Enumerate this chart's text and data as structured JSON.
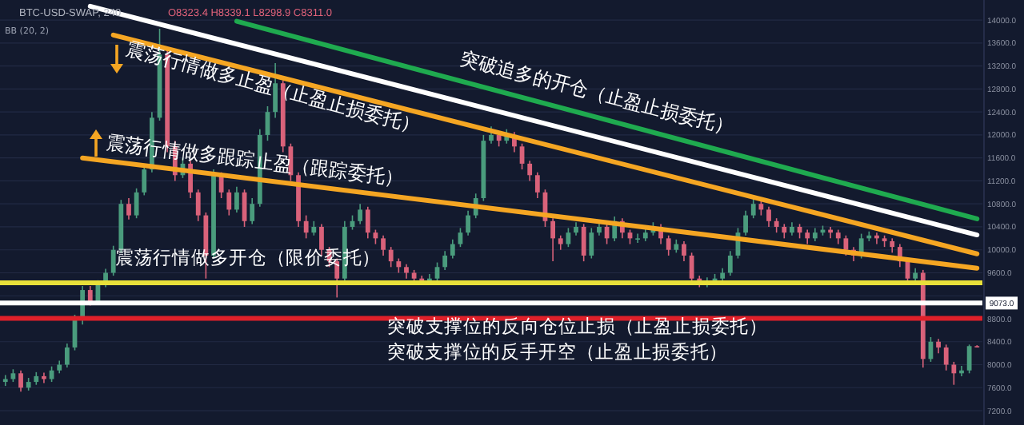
{
  "chart_data": {
    "type": "candlestick",
    "title": "BTC-USD-SWAP, 240",
    "subtitle": "O8323.4 H8339.1 L8298.9 C8311.0",
    "categories": [
      null,
      null,
      null,
      null,
      null,
      null,
      null,
      null,
      null,
      null,
      null,
      null,
      null,
      null,
      null,
      null,
      null,
      null,
      null,
      null,
      null,
      null,
      null,
      null,
      null,
      null,
      null,
      null,
      null,
      null,
      null,
      null,
      null,
      null,
      null,
      null,
      null,
      null,
      null,
      null,
      null,
      null,
      null,
      null,
      null,
      null,
      null,
      null,
      null,
      null,
      null,
      null,
      null,
      null,
      null,
      null,
      null,
      null,
      null,
      null,
      null,
      null,
      null,
      null,
      null,
      null,
      null,
      null,
      null,
      null,
      null,
      null,
      null,
      null,
      null,
      null,
      null,
      null,
      null,
      null,
      null,
      null,
      null,
      null,
      null,
      null,
      null,
      null,
      null,
      null,
      null,
      null,
      null,
      null,
      null,
      null,
      null,
      null,
      null,
      null,
      null,
      null,
      null,
      null,
      null,
      null,
      null,
      null,
      null,
      null,
      null,
      null,
      null,
      null,
      null,
      null,
      null,
      null,
      null,
      null,
      null,
      null,
      null,
      null,
      null,
      null,
      null
    ],
    "ohlc": [
      [
        7700,
        7820,
        7630,
        7750
      ],
      [
        7750,
        7920,
        7700,
        7850
      ],
      [
        7850,
        7900,
        7530,
        7600
      ],
      [
        7600,
        7770,
        7550,
        7700
      ],
      [
        7700,
        7870,
        7650,
        7800
      ],
      [
        7800,
        7860,
        7680,
        7750
      ],
      [
        7750,
        7970,
        7700,
        7900
      ],
      [
        7900,
        8070,
        7850,
        8000
      ],
      [
        8000,
        8370,
        7950,
        8300
      ],
      [
        8300,
        8870,
        8250,
        8800
      ],
      [
        8800,
        9370,
        8700,
        9300
      ],
      [
        9300,
        9370,
        9030,
        9100
      ],
      [
        9100,
        9470,
        9050,
        9400
      ],
      [
        9400,
        9670,
        9350,
        9600
      ],
      [
        9600,
        10070,
        9550,
        10000
      ],
      [
        10000,
        10870,
        9950,
        10800
      ],
      [
        10800,
        10900,
        10530,
        10600
      ],
      [
        10600,
        11070,
        10550,
        11000
      ],
      [
        11000,
        11470,
        10950,
        11400
      ],
      [
        11400,
        12400,
        11350,
        12300
      ],
      [
        12300,
        13850,
        12250,
        13400
      ],
      [
        13400,
        13500,
        11700,
        11800
      ],
      [
        11800,
        11900,
        11200,
        11300
      ],
      [
        11300,
        11600,
        11250,
        11500
      ],
      [
        11500,
        11550,
        10900,
        11000
      ],
      [
        11000,
        11050,
        10500,
        10600
      ],
      [
        10600,
        10650,
        9500,
        9900
      ],
      [
        9900,
        11400,
        9850,
        11300
      ],
      [
        11300,
        11350,
        10900,
        11000
      ],
      [
        11000,
        11050,
        10600,
        10700
      ],
      [
        10700,
        11100,
        10650,
        11000
      ],
      [
        11000,
        11050,
        10400,
        10500
      ],
      [
        10500,
        10900,
        10450,
        10800
      ],
      [
        10800,
        12100,
        10750,
        12000
      ],
      [
        12000,
        12500,
        11900,
        12400
      ],
      [
        12400,
        13250,
        12300,
        12900
      ],
      [
        12900,
        12950,
        11700,
        11800
      ],
      [
        11800,
        11850,
        11200,
        11300
      ],
      [
        11300,
        11350,
        10400,
        10500
      ],
      [
        10500,
        10600,
        10200,
        10300
      ],
      [
        10300,
        10500,
        10250,
        10400
      ],
      [
        10400,
        10450,
        9900,
        10000
      ],
      [
        10000,
        10050,
        9700,
        9800
      ],
      [
        9800,
        9850,
        9170,
        9500
      ],
      [
        9500,
        10500,
        9450,
        10400
      ],
      [
        10400,
        10600,
        10350,
        10500
      ],
      [
        10500,
        10800,
        10450,
        10700
      ],
      [
        10700,
        10750,
        10200,
        10300
      ],
      [
        10300,
        10350,
        10100,
        10200
      ],
      [
        10200,
        10250,
        9900,
        10000
      ],
      [
        10000,
        10050,
        9700,
        9800
      ],
      [
        9800,
        9850,
        9600,
        9700
      ],
      [
        9700,
        9750,
        9500,
        9600
      ],
      [
        9600,
        9650,
        9420,
        9500
      ],
      [
        9500,
        9550,
        9400,
        9450
      ],
      [
        9450,
        9580,
        9400,
        9500
      ],
      [
        9500,
        9780,
        9450,
        9700
      ],
      [
        9700,
        9980,
        9650,
        9900
      ],
      [
        9900,
        10180,
        9850,
        10100
      ],
      [
        10100,
        10380,
        10050,
        10300
      ],
      [
        10300,
        10680,
        10250,
        10600
      ],
      [
        10600,
        10980,
        10550,
        10900
      ],
      [
        10900,
        12000,
        10850,
        11900
      ],
      [
        11900,
        12150,
        11850,
        12000
      ],
      [
        12000,
        12050,
        11800,
        11900
      ],
      [
        11900,
        12100,
        11850,
        12000
      ],
      [
        12000,
        12050,
        11700,
        11800
      ],
      [
        11800,
        11850,
        11400,
        11500
      ],
      [
        11500,
        11550,
        11200,
        11300
      ],
      [
        11300,
        11350,
        10900,
        11000
      ],
      [
        11000,
        11050,
        10400,
        10500
      ],
      [
        10500,
        10550,
        9800,
        10200
      ],
      [
        10200,
        10250,
        10000,
        10100
      ],
      [
        10100,
        10380,
        10050,
        10300
      ],
      [
        10300,
        10480,
        10250,
        10400
      ],
      [
        10400,
        10450,
        9800,
        9900
      ],
      [
        9900,
        10380,
        9850,
        10300
      ],
      [
        10300,
        10480,
        10250,
        10400
      ],
      [
        10400,
        10450,
        10100,
        10200
      ],
      [
        10200,
        10580,
        10150,
        10500
      ],
      [
        10500,
        10550,
        10200,
        10300
      ],
      [
        10300,
        10350,
        10100,
        10200
      ],
      [
        10200,
        10280,
        10120,
        10200
      ],
      [
        10200,
        10380,
        10150,
        10300
      ],
      [
        10300,
        10480,
        10250,
        10400
      ],
      [
        10400,
        10450,
        10100,
        10200
      ],
      [
        10200,
        10250,
        9900,
        10000
      ],
      [
        10000,
        10180,
        9950,
        10100
      ],
      [
        10100,
        10150,
        9800,
        9900
      ],
      [
        9900,
        9950,
        9400,
        9500
      ],
      [
        9500,
        9550,
        9350,
        9400
      ],
      [
        9400,
        9520,
        9350,
        9450
      ],
      [
        9450,
        9580,
        9400,
        9500
      ],
      [
        9500,
        9680,
        9450,
        9600
      ],
      [
        9600,
        9980,
        9550,
        9900
      ],
      [
        9900,
        10380,
        9850,
        10300
      ],
      [
        10300,
        10680,
        10250,
        10600
      ],
      [
        10600,
        10950,
        10550,
        10800
      ],
      [
        10800,
        10850,
        10600,
        10700
      ],
      [
        10700,
        10750,
        10400,
        10500
      ],
      [
        10500,
        10550,
        10300,
        10400
      ],
      [
        10400,
        10450,
        10200,
        10300
      ],
      [
        10300,
        10480,
        10250,
        10400
      ],
      [
        10400,
        10450,
        10200,
        10300
      ],
      [
        10300,
        10350,
        10100,
        10200
      ],
      [
        10200,
        10380,
        10150,
        10300
      ],
      [
        10300,
        10420,
        10250,
        10350
      ],
      [
        10350,
        10400,
        10200,
        10300
      ],
      [
        10300,
        10350,
        10100,
        10200
      ],
      [
        10200,
        10250,
        9900,
        10000
      ],
      [
        10000,
        10050,
        9800,
        9900
      ],
      [
        9900,
        10280,
        9850,
        10200
      ],
      [
        10200,
        10320,
        10150,
        10250
      ],
      [
        10250,
        10300,
        10100,
        10200
      ],
      [
        10200,
        10250,
        10050,
        10150
      ],
      [
        10150,
        10200,
        9950,
        10050
      ],
      [
        10050,
        10100,
        9700,
        9800
      ],
      [
        9800,
        9850,
        9400,
        9500
      ],
      [
        9500,
        9680,
        9450,
        9600
      ],
      [
        9600,
        9650,
        7950,
        8100
      ],
      [
        8100,
        8480,
        8050,
        8400
      ],
      [
        8400,
        8450,
        8200,
        8300
      ],
      [
        8300,
        8350,
        7900,
        8000
      ],
      [
        8000,
        8050,
        7650,
        7850
      ],
      [
        7850,
        7980,
        7800,
        7900
      ],
      [
        7900,
        8350,
        7850,
        8323.4
      ],
      [
        8323.4,
        8339.1,
        8298.9,
        8311.0
      ]
    ],
    "colors": [
      "#4a9c7d",
      "#4a9c7d",
      "#d9627a",
      "#4a9c7d",
      "#4a9c7d",
      "#d9627a",
      "#4a9c7d",
      "#4a9c7d",
      "#4a9c7d",
      "#4a9c7d",
      "#4a9c7d",
      "#d9627a",
      "#4a9c7d",
      "#4a9c7d",
      "#4a9c7d",
      "#4a9c7d",
      "#d9627a",
      "#4a9c7d",
      "#4a9c7d",
      "#4a9c7d",
      "#4a9c7d",
      "#d9627a",
      "#d9627a",
      "#4a9c7d",
      "#d9627a",
      "#d9627a",
      "#d9627a",
      "#4a9c7d",
      "#d9627a",
      "#d9627a",
      "#4a9c7d",
      "#d9627a",
      "#4a9c7d",
      "#4a9c7d",
      "#4a9c7d",
      "#4a9c7d",
      "#d9627a",
      "#d9627a",
      "#d9627a",
      "#d9627a",
      "#4a9c7d",
      "#d9627a",
      "#d9627a",
      "#d9627a",
      "#4a9c7d",
      "#4a9c7d",
      "#4a9c7d",
      "#d9627a",
      "#d9627a",
      "#d9627a",
      "#d9627a",
      "#d9627a",
      "#d9627a",
      "#d9627a",
      "#d9627a",
      "#4a9c7d",
      "#4a9c7d",
      "#4a9c7d",
      "#4a9c7d",
      "#4a9c7d",
      "#4a9c7d",
      "#4a9c7d",
      "#4a9c7d",
      "#4a9c7d",
      "#d9627a",
      "#4a9c7d",
      "#d9627a",
      "#d9627a",
      "#d9627a",
      "#d9627a",
      "#d9627a",
      "#d9627a",
      "#d9627a",
      "#4a9c7d",
      "#4a9c7d",
      "#d9627a",
      "#4a9c7d",
      "#4a9c7d",
      "#d9627a",
      "#4a9c7d",
      "#d9627a",
      "#d9627a",
      "#4a9c7d",
      "#4a9c7d",
      "#4a9c7d",
      "#d9627a",
      "#d9627a",
      "#4a9c7d",
      "#d9627a",
      "#d9627a",
      "#d9627a",
      "#4a9c7d",
      "#4a9c7d",
      "#4a9c7d",
      "#4a9c7d",
      "#4a9c7d",
      "#4a9c7d",
      "#4a9c7d",
      "#d9627a",
      "#d9627a",
      "#d9627a",
      "#d9627a",
      "#4a9c7d",
      "#d9627a",
      "#d9627a",
      "#4a9c7d",
      "#4a9c7d",
      "#d9627a",
      "#d9627a",
      "#d9627a",
      "#d9627a",
      "#4a9c7d",
      "#4a9c7d",
      "#d9627a",
      "#d9627a",
      "#d9627a",
      "#d9627a",
      "#d9627a",
      "#4a9c7d",
      "#d9627a",
      "#4a9c7d",
      "#d9627a",
      "#d9627a",
      "#d9627a",
      "#4a9c7d",
      "#4a9c7d",
      "#d9627a"
    ],
    "series": [
      {
        "type": "line",
        "color": "#1faa4f",
        "values": [
          null,
          null,
          null,
          null,
          null,
          null,
          null,
          null,
          null,
          null,
          null,
          null,
          null,
          null,
          null,
          null,
          null,
          null,
          null,
          null,
          null,
          null,
          null,
          null,
          null,
          null,
          null,
          null,
          null,
          null,
          13980,
          null,
          null,
          null,
          null,
          null,
          null,
          null,
          null,
          null,
          null,
          null,
          null,
          null,
          null,
          null,
          null,
          null,
          null,
          null,
          null,
          null,
          null,
          null,
          null,
          null,
          null,
          null,
          null,
          null,
          null,
          null,
          null,
          null,
          null,
          null,
          null,
          null,
          null,
          null,
          null,
          null,
          null,
          null,
          null,
          null,
          null,
          null,
          null,
          null,
          null,
          null,
          null,
          null,
          null,
          null,
          null,
          null,
          null,
          null,
          null,
          null,
          null,
          null,
          null,
          null,
          null,
          null,
          null,
          null,
          null,
          null,
          null,
          null,
          null,
          null,
          null,
          null,
          null,
          null,
          null,
          null,
          null,
          null,
          null,
          null,
          null,
          null,
          null,
          null,
          null,
          null,
          null,
          null,
          null,
          null,
          10540
        ]
      },
      {
        "type": "line",
        "color": "#ffffff",
        "values": [
          null,
          null,
          null,
          null,
          null,
          null,
          null,
          null,
          null,
          null,
          null,
          14240,
          null,
          null,
          null,
          null,
          null,
          null,
          null,
          null,
          null,
          null,
          null,
          null,
          null,
          null,
          null,
          null,
          null,
          null,
          null,
          null,
          null,
          null,
          null,
          null,
          null,
          null,
          null,
          null,
          null,
          null,
          null,
          null,
          null,
          null,
          null,
          null,
          null,
          null,
          null,
          null,
          null,
          null,
          null,
          null,
          null,
          null,
          null,
          null,
          null,
          null,
          null,
          null,
          null,
          null,
          null,
          null,
          null,
          null,
          null,
          null,
          null,
          null,
          null,
          null,
          null,
          null,
          null,
          null,
          null,
          null,
          null,
          null,
          null,
          null,
          null,
          null,
          null,
          null,
          null,
          null,
          null,
          null,
          null,
          null,
          null,
          null,
          null,
          null,
          null,
          null,
          null,
          null,
          null,
          null,
          null,
          null,
          null,
          null,
          null,
          null,
          null,
          null,
          null,
          null,
          null,
          null,
          null,
          null,
          null,
          null,
          null,
          null,
          null,
          null,
          10260
        ]
      },
      {
        "type": "line",
        "color": "#f5a623",
        "values": [
          null,
          null,
          null,
          null,
          null,
          null,
          null,
          null,
          null,
          null,
          null,
          null,
          null,
          null,
          13740,
          null,
          null,
          null,
          null,
          null,
          null,
          null,
          null,
          null,
          null,
          null,
          null,
          null,
          null,
          null,
          null,
          null,
          null,
          null,
          null,
          null,
          null,
          null,
          null,
          null,
          null,
          null,
          null,
          null,
          null,
          null,
          null,
          null,
          null,
          null,
          null,
          null,
          null,
          null,
          null,
          null,
          null,
          null,
          null,
          null,
          null,
          null,
          null,
          null,
          null,
          null,
          null,
          null,
          null,
          null,
          null,
          null,
          null,
          null,
          null,
          null,
          null,
          null,
          null,
          null,
          null,
          null,
          null,
          null,
          null,
          null,
          null,
          null,
          null,
          null,
          null,
          null,
          null,
          null,
          null,
          null,
          null,
          null,
          null,
          null,
          null,
          null,
          null,
          null,
          null,
          null,
          null,
          null,
          null,
          null,
          null,
          null,
          null,
          null,
          null,
          null,
          null,
          null,
          null,
          null,
          null,
          null,
          null,
          null,
          null,
          null,
          9930
        ]
      },
      {
        "type": "line",
        "color": "#f5a623",
        "values": [
          null,
          null,
          null,
          null,
          null,
          null,
          null,
          null,
          null,
          null,
          11600,
          null,
          null,
          null,
          null,
          null,
          null,
          null,
          null,
          null,
          null,
          null,
          null,
          null,
          null,
          null,
          null,
          null,
          null,
          null,
          null,
          null,
          null,
          null,
          null,
          null,
          null,
          null,
          null,
          null,
          null,
          null,
          null,
          null,
          null,
          null,
          null,
          null,
          null,
          null,
          null,
          null,
          null,
          null,
          null,
          null,
          null,
          null,
          null,
          null,
          null,
          null,
          null,
          null,
          null,
          null,
          null,
          null,
          null,
          null,
          null,
          null,
          null,
          null,
          null,
          null,
          null,
          null,
          null,
          null,
          null,
          null,
          null,
          null,
          null,
          null,
          null,
          null,
          null,
          null,
          null,
          null,
          null,
          null,
          null,
          null,
          null,
          null,
          null,
          null,
          null,
          null,
          null,
          null,
          null,
          null,
          null,
          null,
          null,
          null,
          null,
          null,
          null,
          null,
          null,
          null,
          null,
          null,
          null,
          null,
          null,
          null,
          null,
          null,
          null,
          null,
          9680
        ]
      }
    ],
    "ylim": [
      6950,
      14350
    ],
    "yticks": [
      {
        "value": 7200,
        "label": "7200.0"
      },
      {
        "value": 7600,
        "label": "7600.0"
      },
      {
        "value": 8000,
        "label": "8000.0"
      },
      {
        "value": 8400,
        "label": "8400.0"
      },
      {
        "value": 8800,
        "label": "8800.0"
      },
      {
        "value": 9200,
        "label": null
      },
      {
        "value": 9600,
        "label": "9600.0"
      },
      {
        "value": 10000,
        "label": "10000.0"
      },
      {
        "value": 10400,
        "label": "10400.0"
      },
      {
        "value": 10800,
        "label": "10800.0"
      },
      {
        "value": 11200,
        "label": "11200.0"
      },
      {
        "value": 11600,
        "label": "11600.0"
      },
      {
        "value": 12000,
        "label": "12000.0"
      },
      {
        "value": 12400,
        "label": "12400.0"
      },
      {
        "value": 12800,
        "label": "12800.0"
      },
      {
        "value": 13200,
        "label": "13200.0"
      },
      {
        "value": 13600,
        "label": "13600.0"
      },
      {
        "value": 14000,
        "label": "14000.0"
      }
    ],
    "tick_labels": "y",
    "grid": "y",
    "ref_lines": [
      {
        "axis": "y",
        "value": 9426,
        "color": "#e8e03a"
      },
      {
        "axis": "y",
        "value": 9073,
        "label": "9073.0",
        "color": "#ffffff"
      },
      {
        "axis": "y",
        "value": 8806,
        "color": "#e0202a"
      }
    ],
    "annotations": [
      "BB (20, 2)",
      "突破追多的开仓（止盈止损委托）",
      "震荡行情做多止盈（止盈止损委托）",
      "震荡行情做多跟踪止盈（跟踪委托）",
      "震荡行情做多开仓（限价委托）",
      "突破支撑位的反向仓位止损（止盈止损委托）",
      "突破支撑位的反手开空（止盈止损委托）"
    ]
  }
}
